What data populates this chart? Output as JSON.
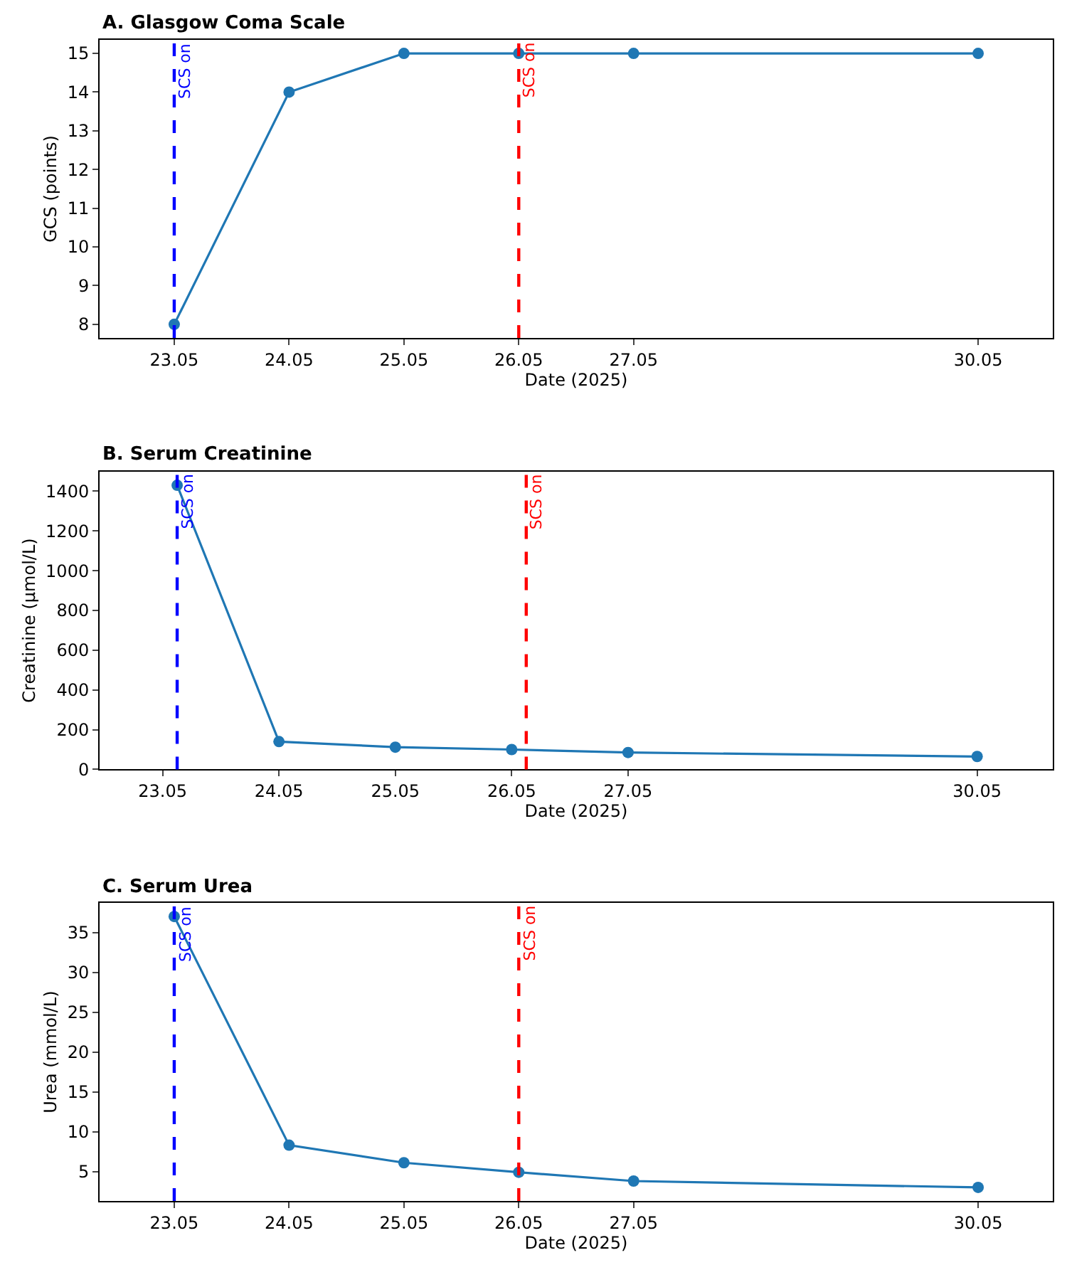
{
  "chart_data": [
    {
      "type": "line",
      "title": "A. Glasgow Coma Scale",
      "xlabel": "Date (2025)",
      "ylabel": "GCS (points)",
      "x": [
        "2025-05-23",
        "2025-05-24",
        "2025-05-25",
        "2025-05-26",
        "2025-05-27",
        "2025-05-30"
      ],
      "series": [
        {
          "color": "#1f77b4",
          "values": [
            8,
            14,
            15,
            15,
            15,
            15
          ]
        }
      ],
      "xlim": [
        "2025-05-22T08:24",
        "2025-05-30T15:36"
      ],
      "xticks": [
        {
          "value": "2025-05-23",
          "label": "23.05"
        },
        {
          "value": "2025-05-24",
          "label": "24.05"
        },
        {
          "value": "2025-05-25",
          "label": "25.05"
        },
        {
          "value": "2025-05-26",
          "label": "26.05"
        },
        {
          "value": "2025-05-27",
          "label": "27.05"
        },
        {
          "value": "2025-05-30",
          "label": "30.05"
        }
      ],
      "ylim": [
        7.65,
        15.35
      ],
      "yticks": [
        8,
        9,
        10,
        11,
        12,
        13,
        14,
        15
      ],
      "marker": "circle",
      "line_style": "solid",
      "ref_lines": [
        {
          "axis": "x",
          "value": "2025-05-23",
          "label": "SCS on",
          "color": "#0000ff",
          "line_style": "dashed"
        },
        {
          "axis": "x",
          "value": "2025-05-26",
          "label": "SCS on",
          "color": "#ff0000",
          "line_style": "dashed"
        }
      ]
    },
    {
      "type": "line",
      "title": "B. Serum Creatinine",
      "xlabel": "Date (2025)",
      "ylabel": "Creatinine (µmol/L)",
      "x": [
        "2025-05-23T03:00",
        "2025-05-24",
        "2025-05-25",
        "2025-05-26",
        "2025-05-27",
        "2025-05-30"
      ],
      "series": [
        {
          "color": "#1f77b4",
          "values": [
            1430,
            140,
            112,
            100,
            85,
            65
          ]
        }
      ],
      "xlim": [
        "2025-05-22T11:00",
        "2025-05-30T15:36"
      ],
      "xticks": [
        {
          "value": "2025-05-23",
          "label": "23.05"
        },
        {
          "value": "2025-05-24",
          "label": "24.05"
        },
        {
          "value": "2025-05-25",
          "label": "25.05"
        },
        {
          "value": "2025-05-26",
          "label": "26.05"
        },
        {
          "value": "2025-05-27",
          "label": "27.05"
        },
        {
          "value": "2025-05-30",
          "label": "30.05"
        }
      ],
      "ylim": [
        0,
        1500
      ],
      "yticks": [
        0,
        200,
        400,
        600,
        800,
        1000,
        1200,
        1400
      ],
      "marker": "circle",
      "line_style": "solid",
      "ref_lines": [
        {
          "axis": "x",
          "value": "2025-05-23T03:00",
          "label": "SCS on",
          "color": "#0000ff",
          "line_style": "dashed"
        },
        {
          "axis": "x",
          "value": "2025-05-26T03:00",
          "label": "SCS on",
          "color": "#ff0000",
          "line_style": "dashed"
        }
      ]
    },
    {
      "type": "line",
      "title": "C. Serum Urea",
      "xlabel": "Date (2025)",
      "ylabel": "Urea (mmol/L)",
      "x": [
        "2025-05-23",
        "2025-05-24",
        "2025-05-25",
        "2025-05-26",
        "2025-05-27",
        "2025-05-30"
      ],
      "series": [
        {
          "color": "#1f77b4",
          "values": [
            37,
            8.3,
            6.1,
            4.9,
            3.8,
            3.0
          ]
        }
      ],
      "xlim": [
        "2025-05-22T08:24",
        "2025-05-30T15:36"
      ],
      "xticks": [
        {
          "value": "2025-05-23",
          "label": "23.05"
        },
        {
          "value": "2025-05-24",
          "label": "24.05"
        },
        {
          "value": "2025-05-25",
          "label": "25.05"
        },
        {
          "value": "2025-05-26",
          "label": "26.05"
        },
        {
          "value": "2025-05-27",
          "label": "27.05"
        },
        {
          "value": "2025-05-30",
          "label": "30.05"
        }
      ],
      "ylim": [
        1.3,
        38.7
      ],
      "yticks": [
        5,
        10,
        15,
        20,
        25,
        30,
        35
      ],
      "marker": "circle",
      "line_style": "solid",
      "ref_lines": [
        {
          "axis": "x",
          "value": "2025-05-23",
          "label": "SCS on",
          "color": "#0000ff",
          "line_style": "dashed"
        },
        {
          "axis": "x",
          "value": "2025-05-26",
          "label": "SCS on",
          "color": "#ff0000",
          "line_style": "dashed"
        }
      ]
    }
  ]
}
